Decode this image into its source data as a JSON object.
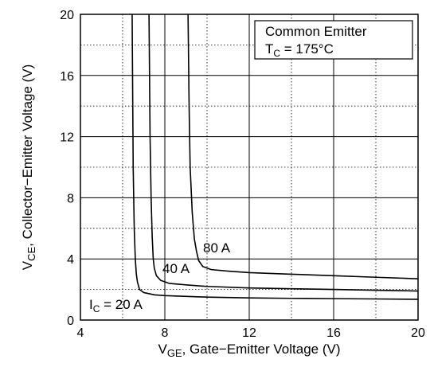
{
  "chart_data": {
    "type": "line",
    "xlabel": {
      "main": "V",
      "sub": "GE",
      "rest": ", Gate−Emitter Voltage (V)"
    },
    "ylabel": {
      "main": "V",
      "sub": "CE",
      "rest": ", Collector−Emitter Voltage (V)"
    },
    "xlim": [
      4,
      20
    ],
    "ylim": [
      0,
      20
    ],
    "xticks": [
      4,
      8,
      12,
      16,
      20
    ],
    "yticks": [
      0,
      4,
      8,
      12,
      16,
      20
    ],
    "grid": true,
    "legend": {
      "line1": "Common Emitter",
      "line2_main": "T",
      "line2_sub": "C",
      "line2_rest": " = 175°C",
      "position": "top-right"
    },
    "series": [
      {
        "name": "I_C = 20 A",
        "label": {
          "main": "I",
          "sub": "C",
          "rest": " = 20 A"
        },
        "x": [
          6.45,
          6.5,
          6.55,
          6.6,
          6.65,
          6.7,
          6.8,
          7.0,
          7.5,
          8,
          10,
          12,
          14,
          16,
          18,
          20
        ],
        "y": [
          20,
          10,
          6,
          4,
          3,
          2.5,
          2.0,
          1.8,
          1.65,
          1.6,
          1.5,
          1.45,
          1.42,
          1.4,
          1.38,
          1.36
        ]
      },
      {
        "name": "40 A",
        "label": {
          "main": "40 A",
          "sub": "",
          "rest": ""
        },
        "x": [
          7.25,
          7.3,
          7.35,
          7.4,
          7.45,
          7.5,
          7.6,
          7.8,
          8.2,
          9,
          10,
          12,
          14,
          16,
          18,
          20
        ],
        "y": [
          20,
          12,
          8,
          5.5,
          4,
          3.4,
          2.9,
          2.6,
          2.4,
          2.3,
          2.2,
          2.1,
          2.05,
          2.0,
          1.95,
          1.9
        ]
      },
      {
        "name": "80 A",
        "label": {
          "main": "80 A",
          "sub": "",
          "rest": ""
        },
        "x": [
          9.1,
          9.15,
          9.2,
          9.3,
          9.4,
          9.5,
          9.6,
          9.8,
          10.2,
          11,
          12,
          14,
          16,
          18,
          20
        ],
        "y": [
          20,
          14,
          10,
          7,
          5.3,
          4.5,
          3.9,
          3.5,
          3.3,
          3.2,
          3.1,
          3.0,
          2.9,
          2.8,
          2.7
        ]
      }
    ]
  }
}
